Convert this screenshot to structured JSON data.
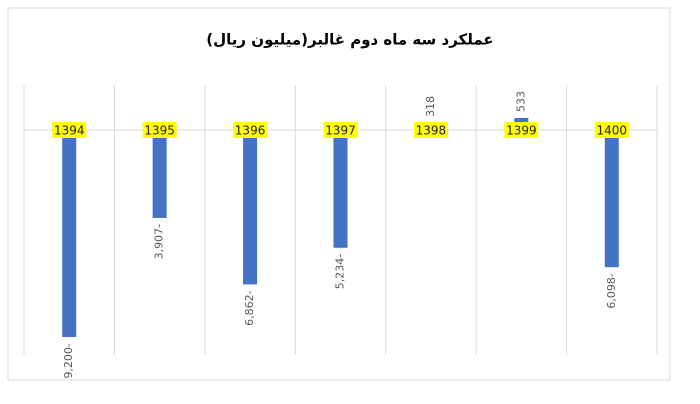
{
  "chart_data": {
    "type": "bar",
    "title": "عملکرد سه ماه دوم غالبر(میلیون ریال)",
    "categories": [
      "1394",
      "1395",
      "1396",
      "1397",
      "1398",
      "1399",
      "1400"
    ],
    "values": [
      -9200,
      -3907,
      -6862,
      -5234,
      318,
      533,
      -6098
    ],
    "value_labels": [
      "9,200-",
      "3,907-",
      "6,862-",
      "5,234-",
      "318",
      "533",
      "6,098-"
    ],
    "color": "#4472c4",
    "ylim": [
      -10000,
      2000
    ]
  }
}
